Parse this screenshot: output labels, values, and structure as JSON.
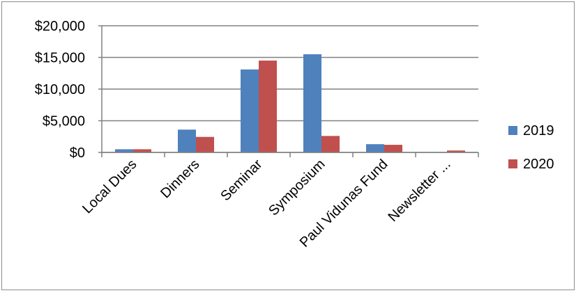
{
  "chart_data": {
    "type": "bar",
    "title": "",
    "xlabel": "",
    "ylabel": "",
    "categories": [
      "Local Dues",
      "Dinners",
      "Seminar",
      "Symposium",
      "Paul Vidunas Fund",
      "Newsletter ..."
    ],
    "series": [
      {
        "name": "2019",
        "color": "#4f81bd",
        "values": [
          500,
          3600,
          13100,
          15500,
          1300,
          0
        ]
      },
      {
        "name": "2020",
        "color": "#c0504d",
        "values": [
          500,
          2450,
          14500,
          2600,
          1200,
          300
        ]
      }
    ],
    "ylim": [
      0,
      20000
    ],
    "yticks": [
      0,
      5000,
      10000,
      15000,
      20000
    ],
    "ytick_labels": [
      "$0",
      "$5,000",
      "$10,000",
      "$15,000",
      "$20,000"
    ],
    "grid": true,
    "legend_position": "right"
  }
}
